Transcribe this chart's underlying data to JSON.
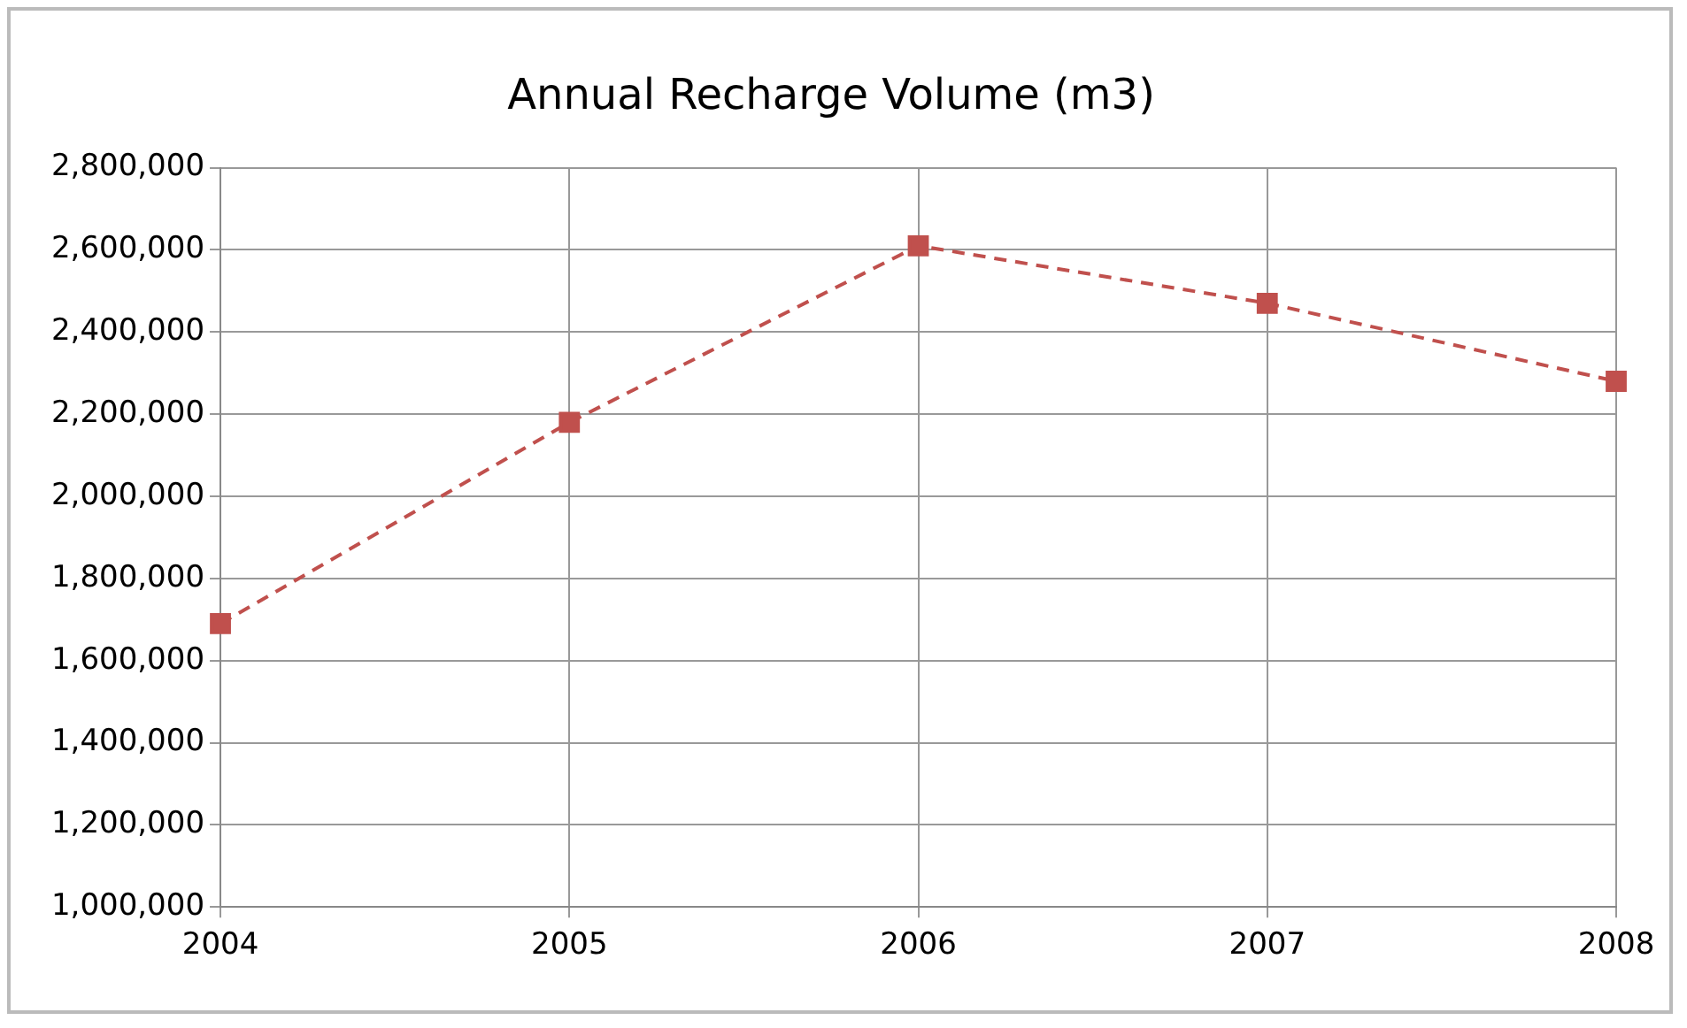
{
  "chart_data": {
    "type": "line",
    "title": "Annual Recharge Volume (m3)",
    "categories": [
      "2004",
      "2005",
      "2006",
      "2007",
      "2008"
    ],
    "series": [
      {
        "color": "#c0504d",
        "values": [
          1690000,
          2180000,
          2610000,
          2470000,
          2280000
        ]
      }
    ],
    "ylim": [
      1000000,
      2800000
    ],
    "yticks": [
      {
        "value": 1000000,
        "label": "1,000,000"
      },
      {
        "value": 1200000,
        "label": "1,200,000"
      },
      {
        "value": 1400000,
        "label": "1,400,000"
      },
      {
        "value": 1600000,
        "label": "1,600,000"
      },
      {
        "value": 1800000,
        "label": "1,800,000"
      },
      {
        "value": 2000000,
        "label": "2,000,000"
      },
      {
        "value": 2200000,
        "label": "2,200,000"
      },
      {
        "value": 2400000,
        "label": "2,400,000"
      },
      {
        "value": 2600000,
        "label": "2,600,000"
      },
      {
        "value": 2800000,
        "label": "2,800,000"
      }
    ],
    "grid": true,
    "legend": false,
    "marker": "square",
    "line_style": "dashed"
  }
}
